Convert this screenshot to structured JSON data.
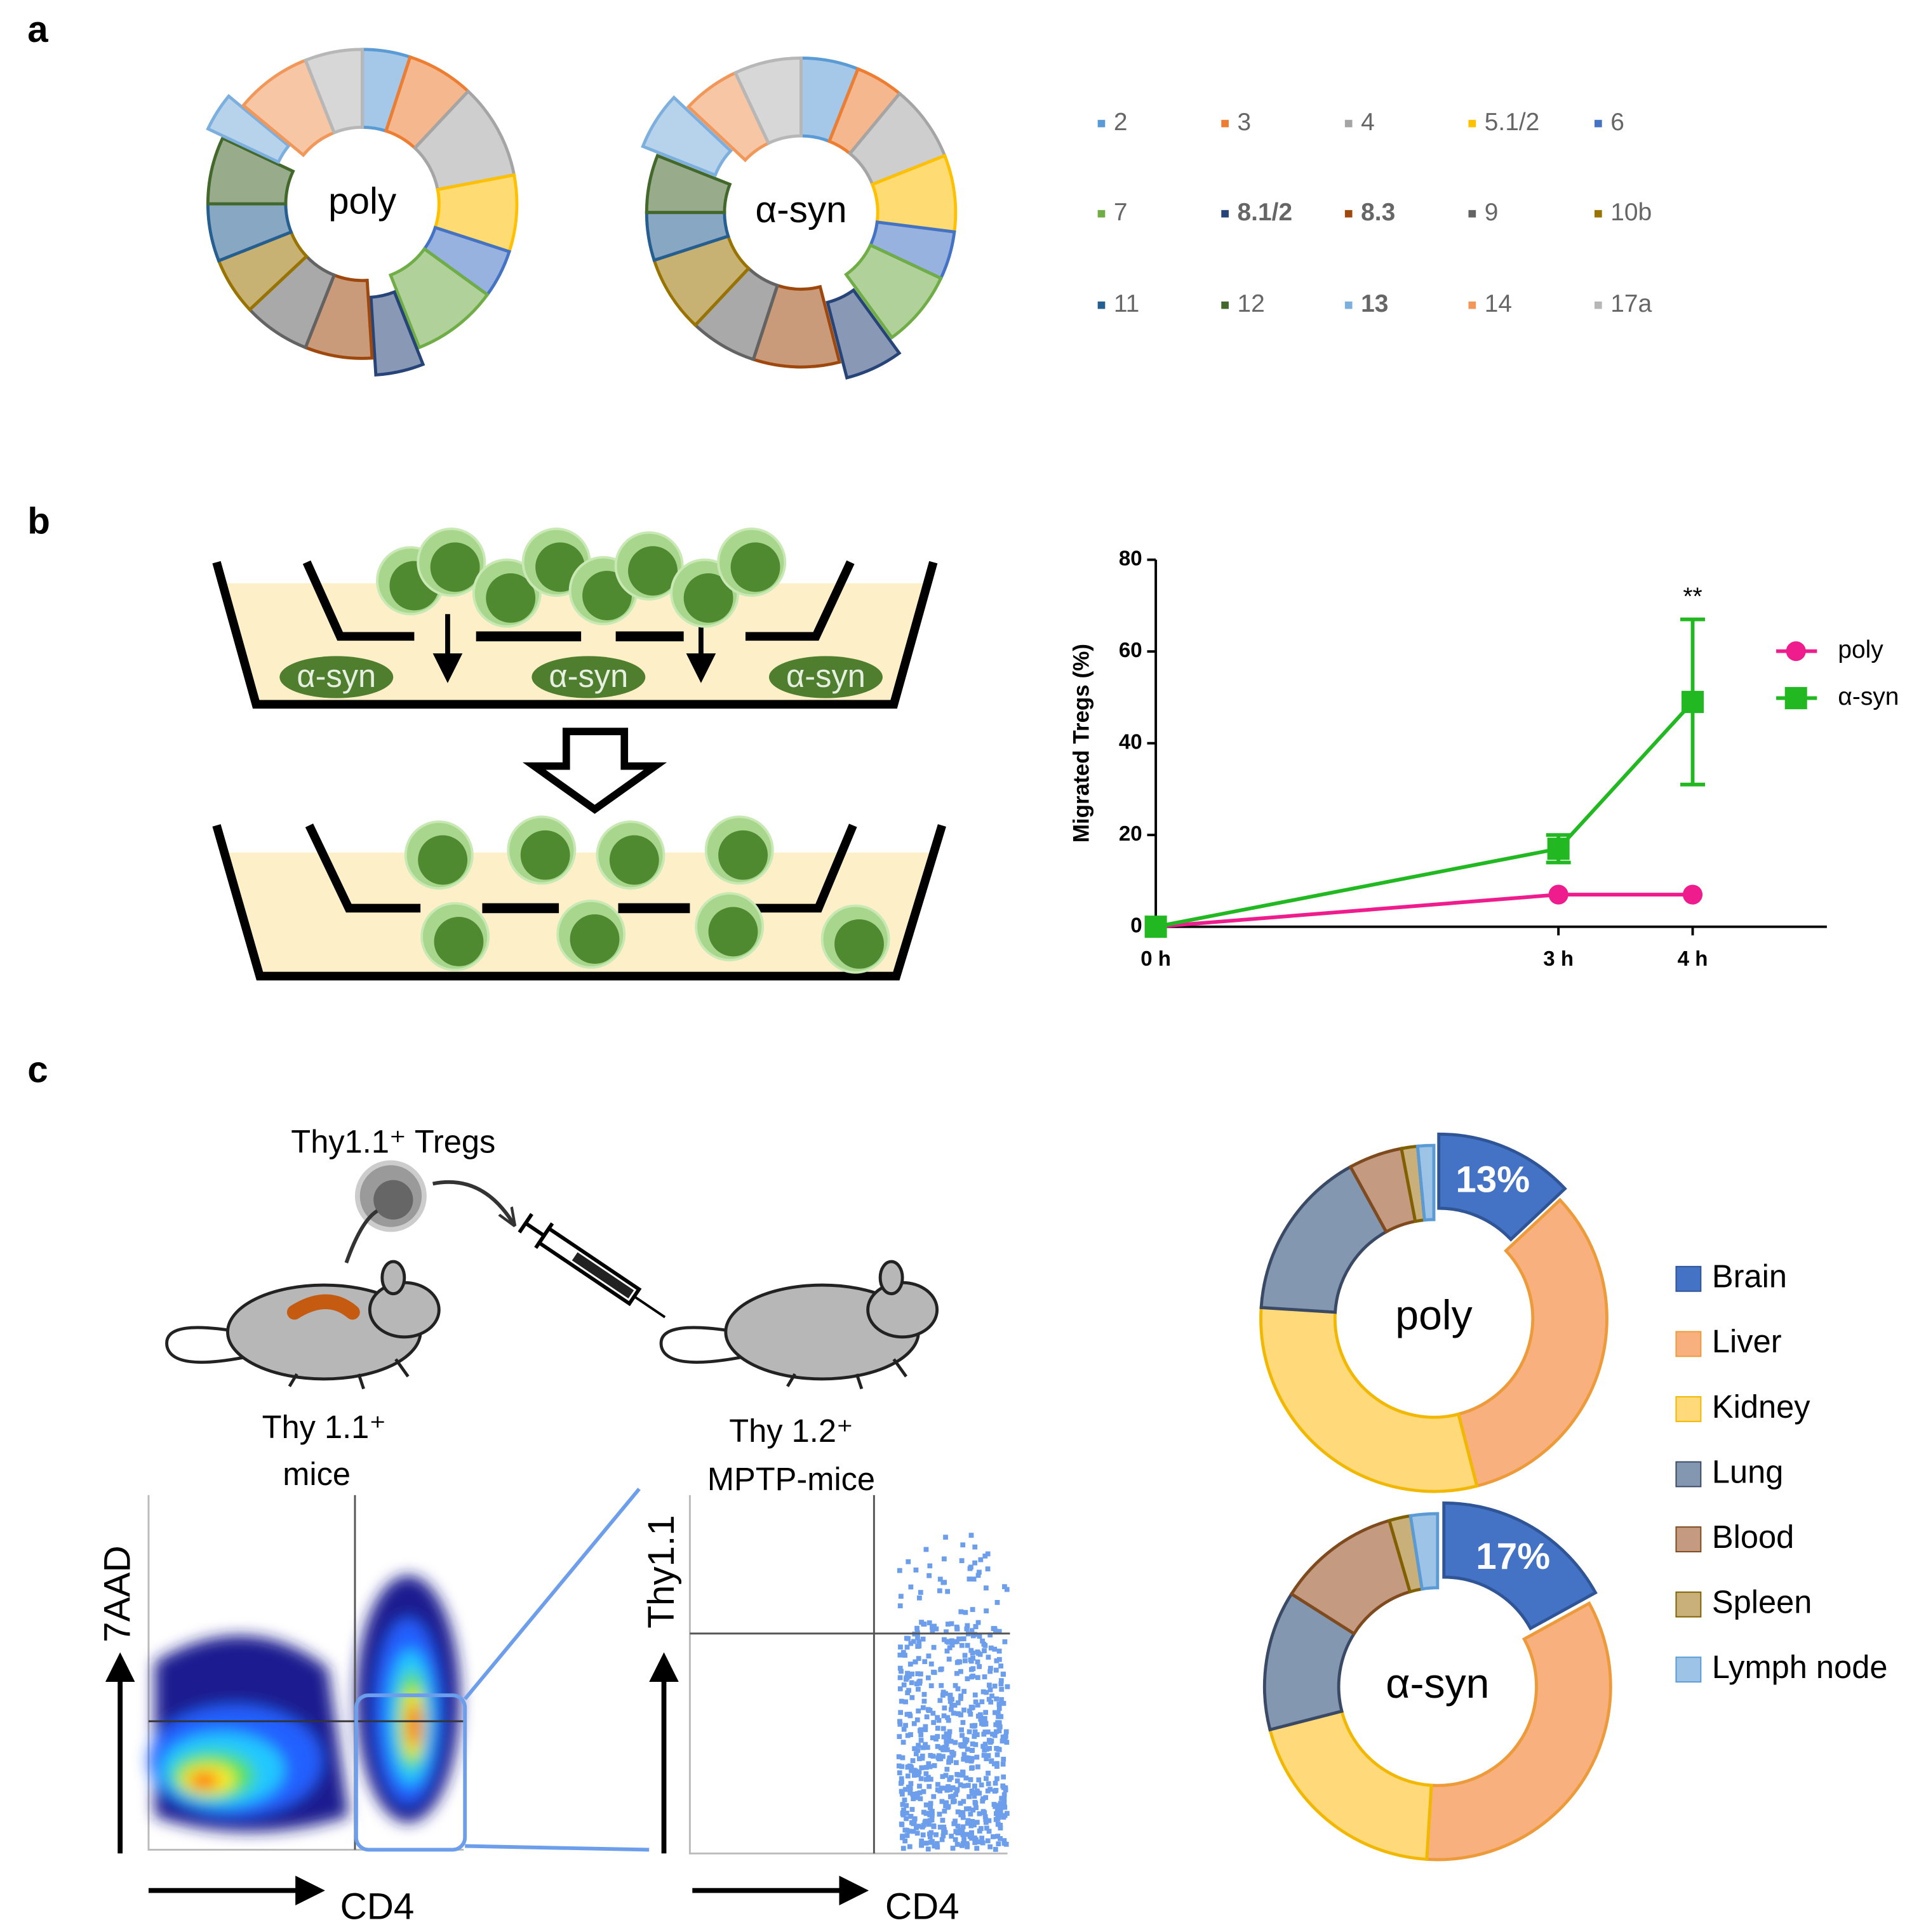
{
  "panel_labels": [
    "a",
    "b",
    "c"
  ],
  "chart_data": [
    {
      "type": "donut",
      "categories": [
        "2",
        "3",
        "4",
        "5.1/2",
        "6",
        "7",
        "8.1/2",
        "8.3",
        "9",
        "10b",
        "11",
        "12",
        "13",
        "14",
        "17a"
      ],
      "colors": [
        "#5b9bd5",
        "#ed7d31",
        "#a5a5a5",
        "#ffc000",
        "#4472c4",
        "#70ad47",
        "#264478",
        "#9e480e",
        "#636363",
        "#997300",
        "#255e91",
        "#43682b",
        "#7cafdd",
        "#f1975a",
        "#b7b7b7"
      ],
      "bold_categories": [
        6,
        7,
        12
      ],
      "exploded_categories": [
        6,
        12
      ],
      "series": [
        {
          "name": "poly",
          "values": [
            5,
            7,
            10,
            8,
            5,
            9,
            5,
            7,
            7,
            6,
            6,
            7,
            4,
            8,
            6
          ]
        },
        {
          "name": "α-syn",
          "values": [
            6,
            5,
            8,
            8,
            5,
            8,
            6,
            9,
            7,
            8,
            5,
            6,
            6,
            6,
            7
          ]
        }
      ]
    },
    {
      "type": "line",
      "ylabel": "Migrated Tregs (%)",
      "x": [
        0,
        3,
        4
      ],
      "xlim": [
        0,
        5
      ],
      "xticks": [
        {
          "value": 0,
          "label": "0 h"
        },
        {
          "value": 3,
          "label": "3 h"
        },
        {
          "value": 4,
          "label": "4 h"
        }
      ],
      "ylim": [
        0,
        80
      ],
      "yticks": [
        0,
        20,
        40,
        60,
        80
      ],
      "series": [
        {
          "name": "poly",
          "color": "#ee1c8c",
          "marker": "circle",
          "values": [
            0,
            7,
            7
          ]
        },
        {
          "name": "α-syn",
          "color": "#22b822",
          "marker": "square",
          "values": [
            0,
            17,
            49
          ],
          "errors": [
            0,
            3,
            18
          ]
        }
      ],
      "annotation": "**"
    },
    {
      "type": "donut",
      "categories": [
        "Brain",
        "Liver",
        "Kidney",
        "Lung",
        "Blood",
        "Spleen",
        "Lymph node"
      ],
      "colors": [
        "#4472c4",
        "#f8b07e",
        "#ffd97a",
        "#8497b0",
        "#c49a80",
        "#c9b07a",
        "#9dc3e6"
      ],
      "edge_colors": [
        "#2f5597",
        "#ed9b3a",
        "#f2b800",
        "#3a4a66",
        "#7f4a1e",
        "#806000",
        "#5b9bd5"
      ],
      "exploded_categories": [
        0
      ],
      "series": [
        {
          "name": "poly",
          "values": [
            13,
            33,
            30,
            16,
            5,
            1.5,
            1.5
          ],
          "value_labels": [
            "13%",
            null,
            null,
            null,
            null,
            null,
            null
          ]
        },
        {
          "name": "α-syn",
          "values": [
            17,
            34,
            20,
            13,
            11.5,
            2,
            2.5
          ],
          "value_labels": [
            "17%",
            null,
            null,
            null,
            null,
            null,
            null
          ]
        }
      ]
    }
  ],
  "diagram_b": {
    "wells": [
      "α-syn",
      "α-syn",
      "α-syn"
    ]
  },
  "diagram_c": {
    "cells": "Thy1.1⁺ Tregs",
    "donor": [
      "Thy 1.1⁺",
      "mice"
    ],
    "recipient": [
      "Thy 1.2⁺",
      "MPTP-mice"
    ],
    "plot1": {
      "y": "7AAD",
      "x": "CD4"
    },
    "plot2": {
      "y": "Thy1.1",
      "x": "CD4"
    }
  }
}
